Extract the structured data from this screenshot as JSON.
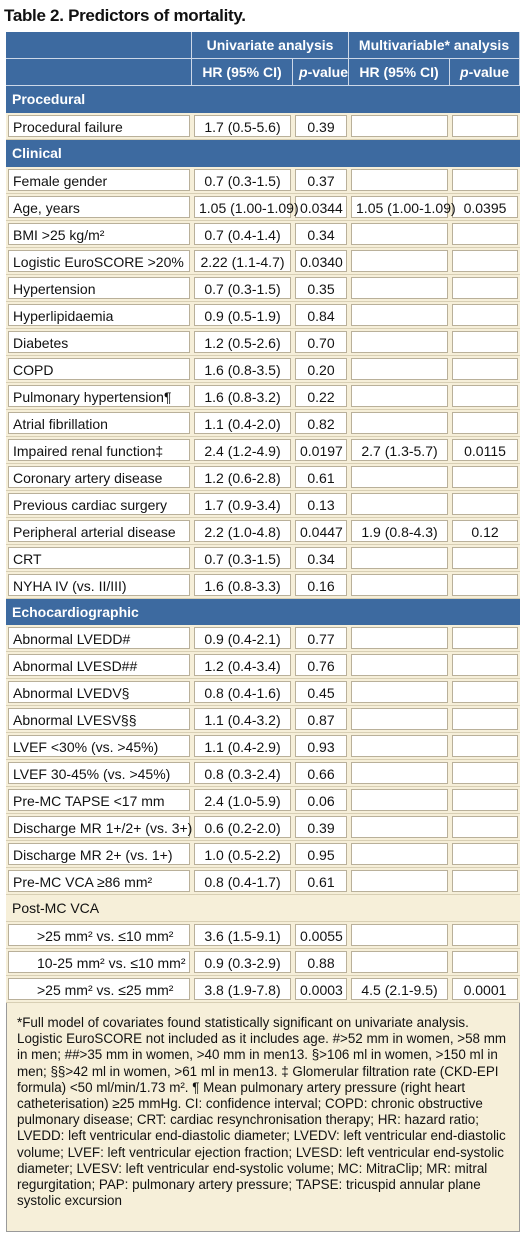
{
  "title": "Table 2. Predictors of mortality.",
  "header": {
    "uni": "Univariate analysis",
    "multi": "Multivariable* analysis",
    "hr": "HR (95% CI)",
    "p_italic": "p",
    "p_rest": "-value"
  },
  "sections": [
    {
      "name": "Procedural",
      "rows": [
        {
          "label": "Procedural failure",
          "uni_hr": "1.7 (0.5-5.6)",
          "uni_p": "0.39",
          "multi_hr": "",
          "multi_p": ""
        }
      ]
    },
    {
      "name": "Clinical",
      "rows": [
        {
          "label": "Female gender",
          "uni_hr": "0.7 (0.3-1.5)",
          "uni_p": "0.37",
          "multi_hr": "",
          "multi_p": ""
        },
        {
          "label": "Age, years",
          "uni_hr": "1.05 (1.00-1.09)",
          "uni_p": "0.0344",
          "multi_hr": "1.05 (1.00-1.09)",
          "multi_p": "0.0395"
        },
        {
          "label": "BMI >25 kg/m²",
          "uni_hr": "0.7 (0.4-1.4)",
          "uni_p": "0.34",
          "multi_hr": "",
          "multi_p": ""
        },
        {
          "label": "Logistic EuroSCORE >20%",
          "uni_hr": "2.22 (1.1-4.7)",
          "uni_p": "0.0340",
          "multi_hr": "",
          "multi_p": ""
        },
        {
          "label": "Hypertension",
          "uni_hr": "0.7 (0.3-1.5)",
          "uni_p": "0.35",
          "multi_hr": "",
          "multi_p": ""
        },
        {
          "label": "Hyperlipidaemia",
          "uni_hr": "0.9 (0.5-1.9)",
          "uni_p": "0.84",
          "multi_hr": "",
          "multi_p": ""
        },
        {
          "label": "Diabetes",
          "uni_hr": "1.2 (0.5-2.6)",
          "uni_p": "0.70",
          "multi_hr": "",
          "multi_p": ""
        },
        {
          "label": "COPD",
          "uni_hr": "1.6 (0.8-3.5)",
          "uni_p": "0.20",
          "multi_hr": "",
          "multi_p": ""
        },
        {
          "label": "Pulmonary hypertension¶",
          "uni_hr": "1.6 (0.8-3.2)",
          "uni_p": "0.22",
          "multi_hr": "",
          "multi_p": ""
        },
        {
          "label": "Atrial fibrillation",
          "uni_hr": "1.1 (0.4-2.0)",
          "uni_p": "0.82",
          "multi_hr": "",
          "multi_p": ""
        },
        {
          "label": "Impaired renal function‡",
          "uni_hr": "2.4 (1.2-4.9)",
          "uni_p": "0.0197",
          "multi_hr": "2.7 (1.3-5.7)",
          "multi_p": "0.0115"
        },
        {
          "label": "Coronary artery disease",
          "uni_hr": "1.2 (0.6-2.8)",
          "uni_p": "0.61",
          "multi_hr": "",
          "multi_p": ""
        },
        {
          "label": "Previous cardiac surgery",
          "uni_hr": "1.7 (0.9-3.4)",
          "uni_p": "0.13",
          "multi_hr": "",
          "multi_p": ""
        },
        {
          "label": "Peripheral arterial disease",
          "uni_hr": "2.2 (1.0-4.8)",
          "uni_p": "0.0447",
          "multi_hr": "1.9 (0.8-4.3)",
          "multi_p": "0.12"
        },
        {
          "label": "CRT",
          "uni_hr": "0.7 (0.3-1.5)",
          "uni_p": "0.34",
          "multi_hr": "",
          "multi_p": ""
        },
        {
          "label": "NYHA IV (vs. II/III)",
          "uni_hr": "1.6 (0.8-3.3)",
          "uni_p": "0.16",
          "multi_hr": "",
          "multi_p": ""
        }
      ]
    },
    {
      "name": "Echocardiographic",
      "rows": [
        {
          "label": "Abnormal LVEDD#",
          "uni_hr": "0.9 (0.4-2.1)",
          "uni_p": "0.77",
          "multi_hr": "",
          "multi_p": ""
        },
        {
          "label": "Abnormal LVESD##",
          "uni_hr": "1.2 (0.4-3.4)",
          "uni_p": "0.76",
          "multi_hr": "",
          "multi_p": ""
        },
        {
          "label": "Abnormal LVEDV§",
          "uni_hr": "0.8 (0.4-1.6)",
          "uni_p": "0.45",
          "multi_hr": "",
          "multi_p": ""
        },
        {
          "label": "Abnormal LVESV§§",
          "uni_hr": "1.1 (0.4-3.2)",
          "uni_p": "0.87",
          "multi_hr": "",
          "multi_p": ""
        },
        {
          "label": "LVEF <30% (vs. >45%)",
          "uni_hr": "1.1 (0.4-2.9)",
          "uni_p": "0.93",
          "multi_hr": "",
          "multi_p": ""
        },
        {
          "label": "LVEF 30-45% (vs. >45%)",
          "uni_hr": "0.8 (0.3-2.4)",
          "uni_p": "0.66",
          "multi_hr": "",
          "multi_p": ""
        },
        {
          "label": "Pre-MC TAPSE <17 mm",
          "uni_hr": "2.4 (1.0-5.9)",
          "uni_p": "0.06",
          "multi_hr": "",
          "multi_p": ""
        },
        {
          "label": "Discharge MR 1+/2+ (vs. 3+)",
          "uni_hr": "0.6 (0.2-2.0)",
          "uni_p": "0.39",
          "multi_hr": "",
          "multi_p": ""
        },
        {
          "label": "Discharge MR 2+ (vs. 1+)",
          "uni_hr": "1.0 (0.5-2.2)",
          "uni_p": "0.95",
          "multi_hr": "",
          "multi_p": ""
        },
        {
          "label": "Pre-MC VCA ≥86 mm²",
          "uni_hr": "0.8 (0.4-1.7)",
          "uni_p": "0.61",
          "multi_hr": "",
          "multi_p": ""
        },
        {
          "label": "Post-MC VCA",
          "uni_hr": "",
          "uni_p": "",
          "multi_hr": "",
          "multi_p": "",
          "group": true
        },
        {
          "label": ">25 mm² vs. ≤10 mm²",
          "uni_hr": "3.6 (1.5-9.1)",
          "uni_p": "0.0055",
          "multi_hr": "",
          "multi_p": "",
          "indent": true
        },
        {
          "label": "10-25 mm² vs. ≤10 mm²",
          "uni_hr": "0.9 (0.3-2.9)",
          "uni_p": "0.88",
          "multi_hr": "",
          "multi_p": "",
          "indent": true
        },
        {
          "label": ">25 mm² vs. ≤25 mm²",
          "uni_hr": "3.8 (1.9-7.8)",
          "uni_p": "0.0003",
          "multi_hr": "4.5 (2.1-9.5)",
          "multi_p": "0.0001",
          "indent": true
        }
      ]
    }
  ],
  "footnote": "*Full model of covariates found statistically significant on univariate analysis. Logistic EuroSCORE not included as it includes age. #>52 mm in women, >58 mm in men; ##>35 mm in women, >40 mm in men13. §>106 ml in women, >150 ml in men; §§>42 ml in women, >61 ml in men13. ‡ Glomerular filtration rate (CKD-EPI formula) <50 ml/min/1.73 m². ¶ Mean pulmonary artery pressure (right heart catheterisation) ≥25 mmHg. CI: confidence interval; COPD: chronic obstructive pulmonary disease; CRT: cardiac resynchronisation therapy; HR: hazard ratio; LVEDD: left ventricular end-diastolic diameter; LVEDV: left ventricular end-diastolic volume; LVEF: left ventricular ejection fraction; LVESD: left ventricular end-systolic diameter; LVESV: left ventricular end-systolic volume; MC: MitraClip; MR: mitral regurgitation; PAP: pulmonary artery pressure; TAPSE: tricuspid annular plane systolic excursion"
}
